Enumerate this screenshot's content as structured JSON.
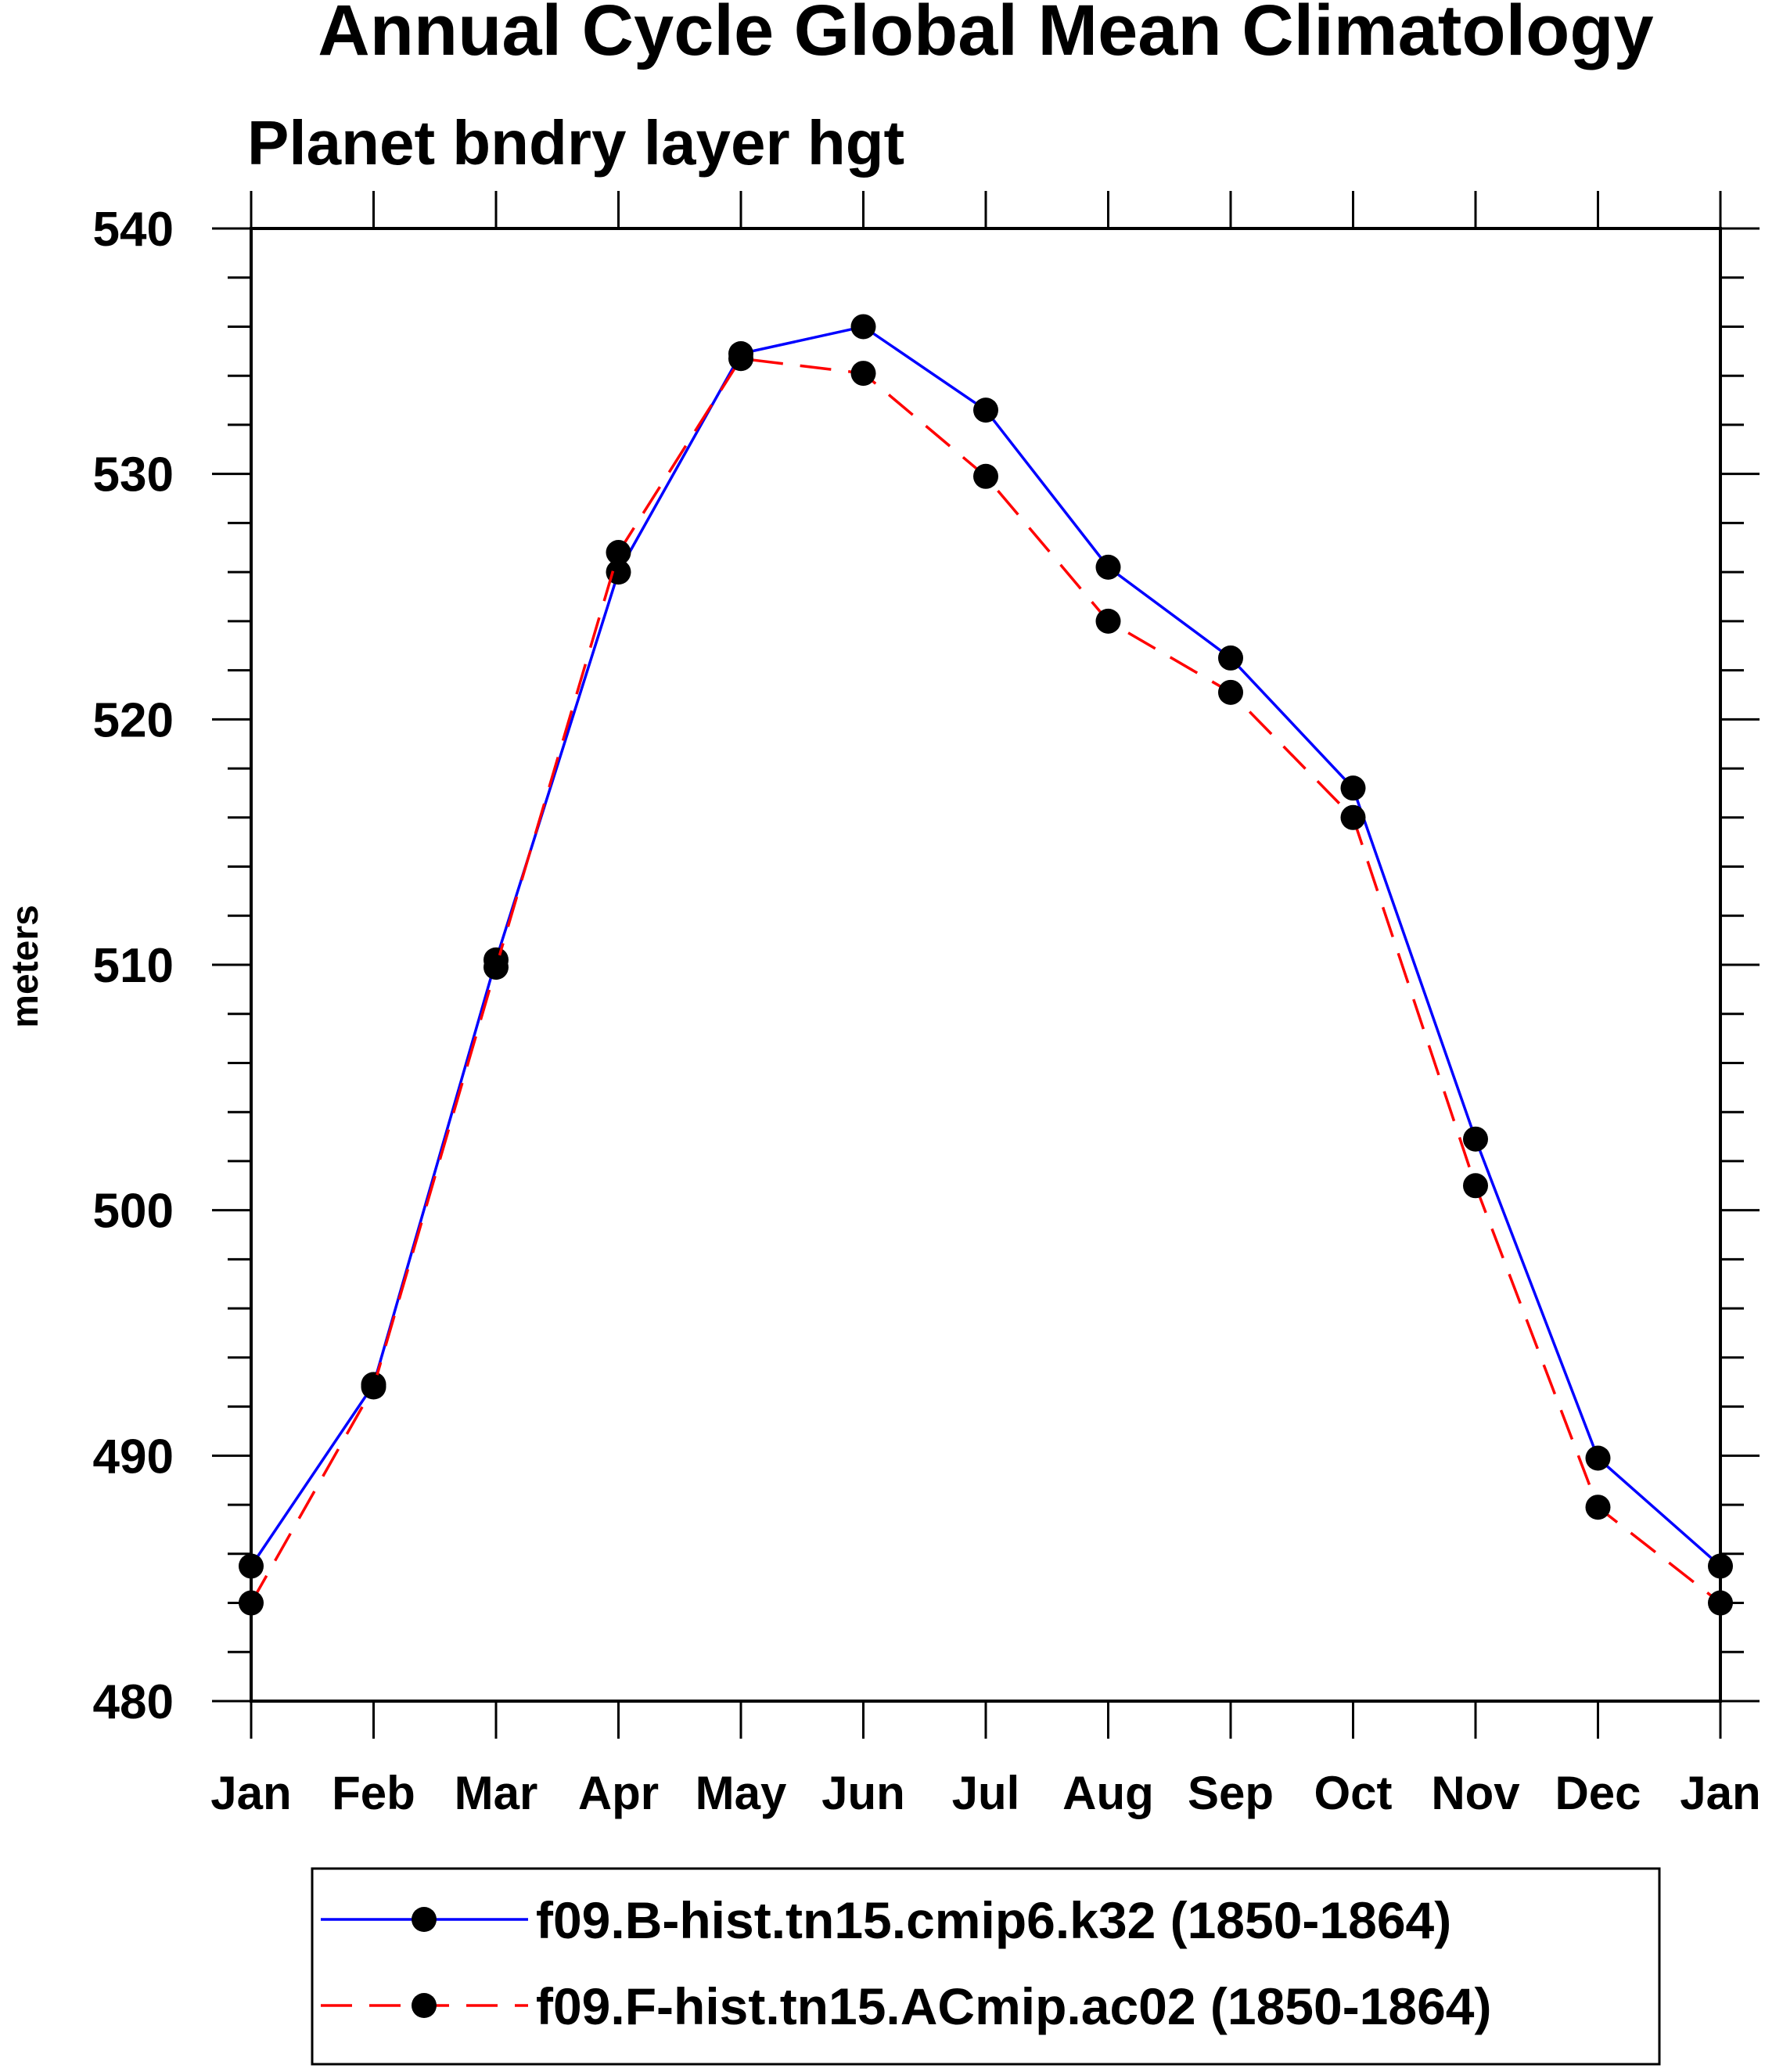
{
  "chart_data": {
    "type": "line",
    "title": "Annual Cycle Global Mean Climatology",
    "subtitle": "Planet bndry layer hgt",
    "xlabel": "",
    "ylabel": "meters",
    "categories": [
      "Jan",
      "Feb",
      "Mar",
      "Apr",
      "May",
      "Jun",
      "Jul",
      "Aug",
      "Sep",
      "Oct",
      "Nov",
      "Dec",
      "Jan"
    ],
    "ylim": [
      480,
      540
    ],
    "yticks": [
      480,
      490,
      500,
      510,
      520,
      530,
      540
    ],
    "grid": false,
    "legend_position": "bottom",
    "series": [
      {
        "name": "f09.B-hist.tn15.cmip6.k32 (1850-1864)",
        "color": "#0000ff",
        "dash": "solid",
        "values": [
          485.5,
          492.9,
          510.2,
          526.0,
          534.9,
          536.0,
          532.6,
          526.2,
          522.5,
          517.2,
          502.9,
          489.9,
          485.5
        ]
      },
      {
        "name": "f09.F-hist.tn15.ACmip.ac02 (1850-1864)",
        "color": "#ff0000",
        "dash": "dashed",
        "values": [
          484.0,
          492.8,
          509.9,
          526.8,
          534.7,
          534.1,
          529.9,
          524.0,
          521.1,
          516.0,
          501.0,
          487.9,
          484.0
        ]
      }
    ]
  }
}
